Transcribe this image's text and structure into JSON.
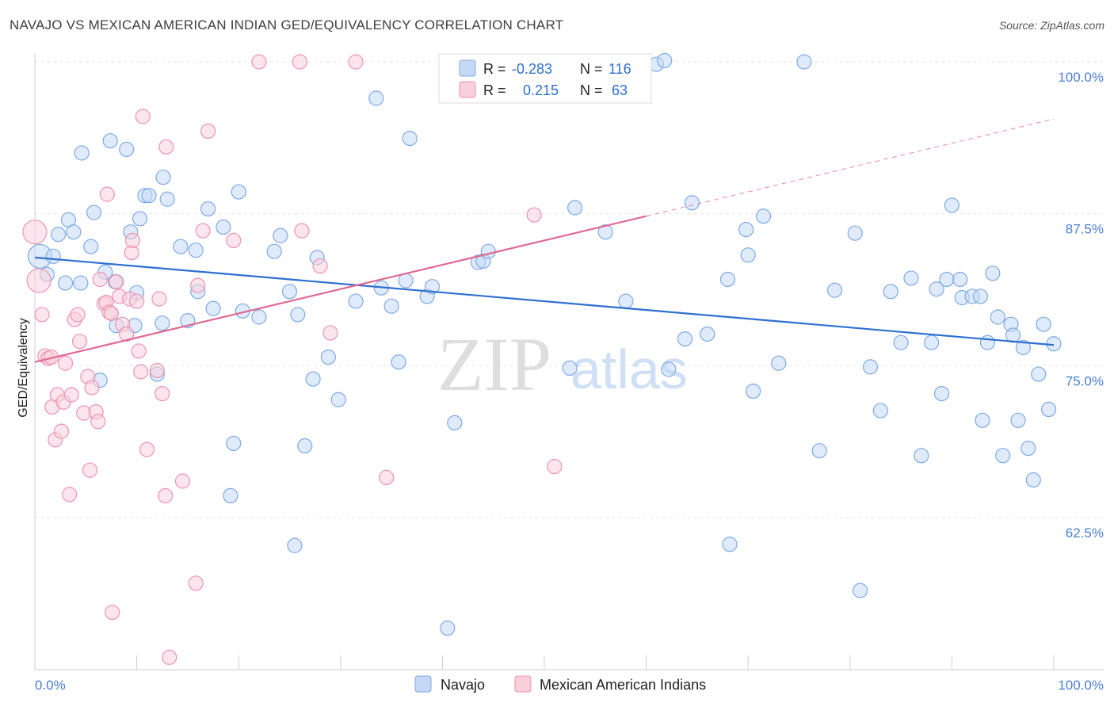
{
  "title": "NAVAJO VS MEXICAN AMERICAN INDIAN GED/EQUIVALENCY CORRELATION CHART",
  "source": "Source: ZipAtlas.com",
  "watermark": {
    "zip": "ZIP",
    "atlas": "atlas"
  },
  "colors": {
    "navajo_fill": "#c5d9f5",
    "navajo_stroke": "#7eaae6",
    "navajo_line": "#2f6fd1",
    "mexican_fill": "#f9cfdc",
    "mexican_stroke": "#eb94b0",
    "mexican_line": "#e06a93",
    "tick_label": "#4a7fd4",
    "grid": "#e6e6e6"
  },
  "legend": {
    "rows": [
      {
        "r_label": "R = ",
        "r_value": "-0.283",
        "n_label": "N = ",
        "n_value": "116"
      },
      {
        "r_label": "R = ",
        "r_value": "0.215",
        "n_label": "N = ",
        "n_value": "63"
      }
    ]
  },
  "chart_data": {
    "type": "scatter",
    "ylabel": "GED/Equivalency",
    "xlabel": "",
    "xlim": [
      0,
      100
    ],
    "ylim": [
      51.5,
      101.5
    ],
    "y_ticks": [
      {
        "value": 100,
        "label": "100.0%"
      },
      {
        "value": 87.5,
        "label": "87.5%"
      },
      {
        "value": 75,
        "label": "75.0%"
      },
      {
        "value": 62.5,
        "label": "62.5%"
      }
    ],
    "x_tick_labels": [
      {
        "value": 0,
        "label": "0.0%"
      },
      {
        "value": 100,
        "label": "100.0%"
      }
    ],
    "grid": true,
    "legend_position": "top-center",
    "series": [
      {
        "name": "Navajo",
        "r": -0.283,
        "n": 116,
        "trend": {
          "x": [
            0,
            100
          ],
          "y": [
            83.9,
            76.7
          ],
          "dashed_extension": false
        },
        "points": [
          [
            0.5,
            84.0
          ],
          [
            1.2,
            82.5
          ],
          [
            1.8,
            84.0
          ],
          [
            2.3,
            85.8
          ],
          [
            3.0,
            81.8
          ],
          [
            3.3,
            87.0
          ],
          [
            3.8,
            86.0
          ],
          [
            4.5,
            81.8
          ],
          [
            4.6,
            92.5
          ],
          [
            5.5,
            84.8
          ],
          [
            5.8,
            87.6
          ],
          [
            6.4,
            73.8
          ],
          [
            6.9,
            82.7
          ],
          [
            7.4,
            93.5
          ],
          [
            7.9,
            81.9
          ],
          [
            8.0,
            78.3
          ],
          [
            9.0,
            92.8
          ],
          [
            9.4,
            86.0
          ],
          [
            9.8,
            78.3
          ],
          [
            10.0,
            81.0
          ],
          [
            10.3,
            87.1
          ],
          [
            10.8,
            89.0
          ],
          [
            11.2,
            89.0
          ],
          [
            12.0,
            74.3
          ],
          [
            12.6,
            90.5
          ],
          [
            13.0,
            88.7
          ],
          [
            14.3,
            84.8
          ],
          [
            15.0,
            78.7
          ],
          [
            15.8,
            84.5
          ],
          [
            16.0,
            81.1
          ],
          [
            17.0,
            87.9
          ],
          [
            17.5,
            79.7
          ],
          [
            18.5,
            86.4
          ],
          [
            19.5,
            68.6
          ],
          [
            19.2,
            64.3
          ],
          [
            20.0,
            89.3
          ],
          [
            20.4,
            79.5
          ],
          [
            22.0,
            79.0
          ],
          [
            23.5,
            84.4
          ],
          [
            24.1,
            85.7
          ],
          [
            25.0,
            81.1
          ],
          [
            25.5,
            60.2
          ],
          [
            25.8,
            79.2
          ],
          [
            26.5,
            68.4
          ],
          [
            27.3,
            73.9
          ],
          [
            27.7,
            83.9
          ],
          [
            28.8,
            75.7
          ],
          [
            29.8,
            72.2
          ],
          [
            31.5,
            80.3
          ],
          [
            33.5,
            97.0
          ],
          [
            34.0,
            81.4
          ],
          [
            35.0,
            79.9
          ],
          [
            35.7,
            75.3
          ],
          [
            36.4,
            82.0
          ],
          [
            36.8,
            93.7
          ],
          [
            38.5,
            80.7
          ],
          [
            39.0,
            81.5
          ],
          [
            40.5,
            53.4
          ],
          [
            41.2,
            70.3
          ],
          [
            43.5,
            83.5
          ],
          [
            44.0,
            83.6
          ],
          [
            44.5,
            84.4
          ],
          [
            52.5,
            74.8
          ],
          [
            53.0,
            88.0
          ],
          [
            54.0,
            100.0
          ],
          [
            56.0,
            86.0
          ],
          [
            58.0,
            80.3
          ],
          [
            61.0,
            99.8
          ],
          [
            61.8,
            100.1
          ],
          [
            62.2,
            74.7
          ],
          [
            63.8,
            77.2
          ],
          [
            64.5,
            88.4
          ],
          [
            66.0,
            77.6
          ],
          [
            68.0,
            82.1
          ],
          [
            68.2,
            60.3
          ],
          [
            69.8,
            86.2
          ],
          [
            70.0,
            84.1
          ],
          [
            70.5,
            72.9
          ],
          [
            71.5,
            87.3
          ],
          [
            73.0,
            75.2
          ],
          [
            75.5,
            100.0
          ],
          [
            77.0,
            68.0
          ],
          [
            78.5,
            81.2
          ],
          [
            80.5,
            85.9
          ],
          [
            81.0,
            56.5
          ],
          [
            82.0,
            74.9
          ],
          [
            83.0,
            71.3
          ],
          [
            84.0,
            81.1
          ],
          [
            85.0,
            76.9
          ],
          [
            86.0,
            82.2
          ],
          [
            87.0,
            67.6
          ],
          [
            88.0,
            76.9
          ],
          [
            88.5,
            81.3
          ],
          [
            89.0,
            72.7
          ],
          [
            89.5,
            82.1
          ],
          [
            90.0,
            88.2
          ],
          [
            90.8,
            82.1
          ],
          [
            91.0,
            80.6
          ],
          [
            92.0,
            80.7
          ],
          [
            92.8,
            80.7
          ],
          [
            93.0,
            70.5
          ],
          [
            93.5,
            76.9
          ],
          [
            94.0,
            82.6
          ],
          [
            94.5,
            79.0
          ],
          [
            95.0,
            67.6
          ],
          [
            95.8,
            78.4
          ],
          [
            96.0,
            77.5
          ],
          [
            96.5,
            70.5
          ],
          [
            97.0,
            76.5
          ],
          [
            97.5,
            68.2
          ],
          [
            98.0,
            65.6
          ],
          [
            98.5,
            74.3
          ],
          [
            99.0,
            78.4
          ],
          [
            99.5,
            71.4
          ],
          [
            100.0,
            76.8
          ],
          [
            12.5,
            78.5
          ]
        ]
      },
      {
        "name": "Mexican American Indians",
        "r": 0.215,
        "n": 63,
        "trend": {
          "x": [
            0,
            60
          ],
          "y": [
            75.3,
            87.3
          ],
          "dashed_extension": true,
          "dashed_to": {
            "x": 100,
            "y": 95.3
          }
        },
        "points": [
          [
            0.0,
            86.0
          ],
          [
            0.4,
            82.0
          ],
          [
            0.7,
            79.2
          ],
          [
            1.0,
            75.8
          ],
          [
            1.3,
            75.6
          ],
          [
            1.6,
            75.7
          ],
          [
            1.7,
            71.6
          ],
          [
            2.0,
            68.9
          ],
          [
            2.2,
            72.6
          ],
          [
            2.6,
            69.6
          ],
          [
            2.8,
            72.0
          ],
          [
            3.0,
            75.2
          ],
          [
            3.4,
            64.4
          ],
          [
            3.6,
            72.6
          ],
          [
            3.9,
            78.8
          ],
          [
            4.2,
            79.2
          ],
          [
            4.4,
            77.0
          ],
          [
            4.8,
            71.1
          ],
          [
            5.2,
            74.1
          ],
          [
            5.4,
            66.4
          ],
          [
            5.6,
            73.2
          ],
          [
            6.0,
            71.2
          ],
          [
            6.2,
            70.4
          ],
          [
            6.4,
            82.1
          ],
          [
            6.8,
            80.1
          ],
          [
            7.0,
            80.2
          ],
          [
            7.1,
            89.1
          ],
          [
            7.3,
            79.4
          ],
          [
            7.5,
            79.3
          ],
          [
            7.6,
            54.7
          ],
          [
            8.0,
            81.9
          ],
          [
            8.3,
            80.7
          ],
          [
            8.6,
            78.4
          ],
          [
            9.0,
            77.6
          ],
          [
            9.3,
            80.5
          ],
          [
            9.5,
            84.3
          ],
          [
            9.6,
            85.3
          ],
          [
            10.0,
            80.3
          ],
          [
            10.2,
            76.2
          ],
          [
            10.4,
            74.5
          ],
          [
            10.6,
            95.5
          ],
          [
            11.0,
            68.1
          ],
          [
            12.0,
            74.6
          ],
          [
            12.2,
            80.5
          ],
          [
            12.5,
            72.7
          ],
          [
            12.8,
            64.3
          ],
          [
            12.9,
            93.0
          ],
          [
            13.2,
            51.0
          ],
          [
            14.5,
            65.5
          ],
          [
            15.8,
            57.1
          ],
          [
            16.0,
            81.6
          ],
          [
            16.5,
            86.1
          ],
          [
            17.0,
            94.3
          ],
          [
            19.5,
            85.3
          ],
          [
            22.0,
            100.0
          ],
          [
            26.0,
            100.0
          ],
          [
            26.2,
            86.1
          ],
          [
            28.0,
            83.2
          ],
          [
            29.0,
            77.7
          ],
          [
            31.5,
            100.0
          ],
          [
            34.5,
            65.8
          ],
          [
            49.0,
            87.4
          ],
          [
            51.0,
            66.7
          ]
        ]
      }
    ]
  }
}
